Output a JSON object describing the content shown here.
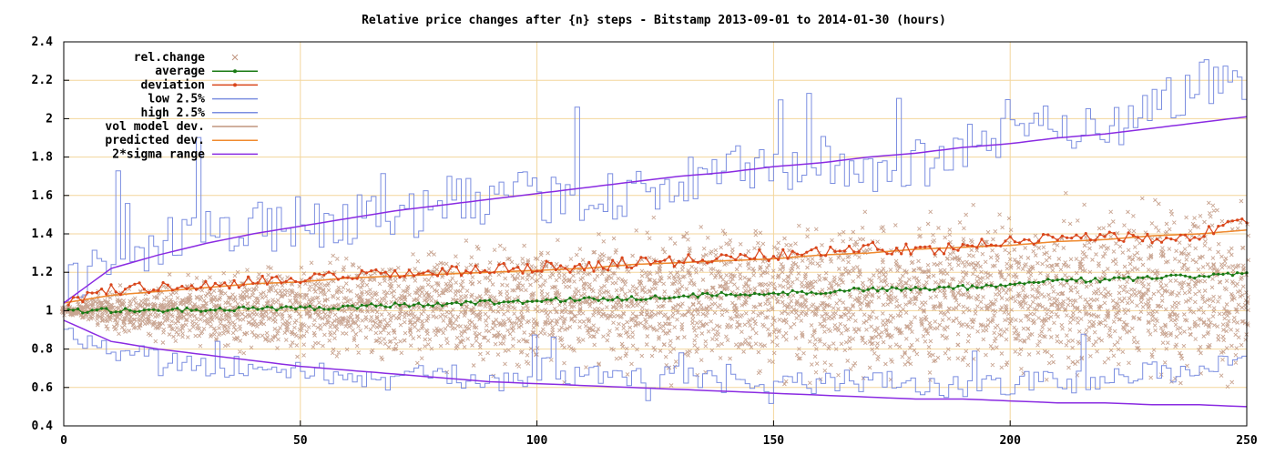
{
  "chart_data": {
    "type": "scatter",
    "title": "Relative price changes after {n} steps - Bitstamp 2013-09-01 to 2014-01-30 (hours)",
    "xlabel": "",
    "ylabel": "",
    "xlim": [
      0,
      250
    ],
    "ylim": [
      0.4,
      2.4
    ],
    "x_ticks": [
      0,
      50,
      100,
      150,
      200,
      250
    ],
    "y_ticks": [
      0.4,
      0.6,
      0.8,
      1,
      1.2,
      1.4,
      1.6,
      1.8,
      2,
      2.2,
      2.4
    ],
    "grid": true,
    "legend_position": "top-left",
    "legend": [
      {
        "label": "rel.change",
        "color": "#c0957f",
        "marker": "x"
      },
      {
        "label": "average",
        "color": "#1a7a14",
        "marker": "dot-line"
      },
      {
        "label": "deviation",
        "color": "#d9461b",
        "marker": "dot-line"
      },
      {
        "label": "low 2.5%",
        "color": "#7b8ee0",
        "marker": "line"
      },
      {
        "label": "high 2.5%",
        "color": "#7b8ee0",
        "marker": "line"
      },
      {
        "label": "vol model dev.",
        "color": "#c0957f",
        "marker": "line"
      },
      {
        "label": "predicted dev.",
        "color": "#f08a2e",
        "marker": "line"
      },
      {
        "label": "2*sigma range",
        "color": "#8a2be2",
        "marker": "line"
      }
    ],
    "series": [
      {
        "name": "average",
        "x": [
          0,
          10,
          20,
          30,
          40,
          50,
          60,
          70,
          80,
          90,
          100,
          110,
          120,
          130,
          140,
          150,
          160,
          170,
          180,
          190,
          200,
          210,
          220,
          230,
          240,
          250
        ],
        "y": [
          1.0,
          1.0,
          1.0,
          1.005,
          1.01,
          1.015,
          1.02,
          1.03,
          1.035,
          1.045,
          1.05,
          1.06,
          1.065,
          1.075,
          1.085,
          1.09,
          1.1,
          1.11,
          1.12,
          1.12,
          1.14,
          1.16,
          1.16,
          1.17,
          1.18,
          1.2
        ]
      },
      {
        "name": "deviation",
        "x": [
          0,
          10,
          20,
          30,
          40,
          50,
          60,
          70,
          80,
          90,
          100,
          110,
          120,
          130,
          140,
          150,
          160,
          170,
          180,
          190,
          200,
          210,
          220,
          230,
          240,
          250
        ],
        "y": [
          1.04,
          1.11,
          1.12,
          1.13,
          1.15,
          1.16,
          1.18,
          1.19,
          1.2,
          1.21,
          1.23,
          1.23,
          1.25,
          1.26,
          1.28,
          1.29,
          1.31,
          1.33,
          1.32,
          1.33,
          1.36,
          1.38,
          1.39,
          1.38,
          1.4,
          1.47
        ]
      },
      {
        "name": "low 2.5%",
        "x": [
          0,
          10,
          20,
          30,
          40,
          50,
          60,
          70,
          80,
          90,
          100,
          110,
          120,
          130,
          140,
          150,
          160,
          170,
          180,
          190,
          200,
          210,
          220,
          230,
          240,
          250
        ],
        "y": [
          0.9,
          0.8,
          0.75,
          0.72,
          0.7,
          0.68,
          0.66,
          0.64,
          0.67,
          0.63,
          0.65,
          0.66,
          0.64,
          0.66,
          0.63,
          0.62,
          0.63,
          0.64,
          0.6,
          0.6,
          0.62,
          0.64,
          0.63,
          0.68,
          0.7,
          0.75
        ]
      },
      {
        "name": "high 2.5%",
        "x": [
          0,
          10,
          20,
          30,
          40,
          50,
          60,
          70,
          80,
          90,
          100,
          110,
          120,
          130,
          140,
          150,
          160,
          170,
          180,
          190,
          200,
          210,
          220,
          230,
          240,
          250
        ],
        "y": [
          1.1,
          1.25,
          1.35,
          1.4,
          1.43,
          1.46,
          1.48,
          1.5,
          1.55,
          1.55,
          1.6,
          1.58,
          1.62,
          1.65,
          1.72,
          1.75,
          1.78,
          1.72,
          1.76,
          1.85,
          1.9,
          2.0,
          1.95,
          2.05,
          2.2,
          2.2
        ]
      },
      {
        "name": "vol model dev.",
        "x": [
          0,
          10,
          20,
          30,
          40,
          50,
          60,
          70,
          80,
          90,
          100,
          110,
          120,
          130,
          140,
          150,
          160,
          170,
          180,
          190,
          200,
          210,
          220,
          230,
          240,
          250
        ],
        "y": [
          1.04,
          1.08,
          1.1,
          1.12,
          1.14,
          1.15,
          1.17,
          1.18,
          1.19,
          1.2,
          1.21,
          1.22,
          1.24,
          1.25,
          1.26,
          1.27,
          1.29,
          1.3,
          1.32,
          1.33,
          1.34,
          1.36,
          1.37,
          1.39,
          1.4,
          1.42
        ]
      },
      {
        "name": "predicted dev.",
        "x": [
          0,
          10,
          20,
          30,
          40,
          50,
          60,
          70,
          80,
          90,
          100,
          110,
          120,
          130,
          140,
          150,
          160,
          170,
          180,
          190,
          200,
          210,
          220,
          230,
          240,
          250
        ],
        "y": [
          1.04,
          1.08,
          1.1,
          1.12,
          1.14,
          1.15,
          1.17,
          1.18,
          1.19,
          1.2,
          1.21,
          1.22,
          1.24,
          1.25,
          1.26,
          1.27,
          1.29,
          1.3,
          1.32,
          1.33,
          1.34,
          1.36,
          1.37,
          1.39,
          1.4,
          1.42
        ]
      },
      {
        "name": "2*sigma range upper",
        "x": [
          0,
          10,
          20,
          30,
          40,
          50,
          60,
          70,
          80,
          90,
          100,
          110,
          120,
          130,
          140,
          150,
          160,
          170,
          180,
          190,
          200,
          210,
          220,
          230,
          240,
          250
        ],
        "y": [
          1.04,
          1.22,
          1.29,
          1.35,
          1.4,
          1.44,
          1.48,
          1.52,
          1.55,
          1.58,
          1.61,
          1.64,
          1.67,
          1.7,
          1.72,
          1.75,
          1.77,
          1.8,
          1.82,
          1.85,
          1.87,
          1.9,
          1.92,
          1.95,
          1.98,
          2.01
        ]
      },
      {
        "name": "2*sigma range lower",
        "x": [
          0,
          10,
          20,
          30,
          40,
          50,
          60,
          70,
          80,
          90,
          100,
          110,
          120,
          130,
          140,
          150,
          160,
          170,
          180,
          190,
          200,
          210,
          220,
          230,
          240,
          250
        ],
        "y": [
          0.95,
          0.84,
          0.8,
          0.77,
          0.74,
          0.71,
          0.69,
          0.67,
          0.65,
          0.63,
          0.62,
          0.61,
          0.6,
          0.59,
          0.58,
          0.57,
          0.56,
          0.55,
          0.54,
          0.54,
          0.53,
          0.52,
          0.52,
          0.51,
          0.51,
          0.5
        ]
      }
    ]
  }
}
